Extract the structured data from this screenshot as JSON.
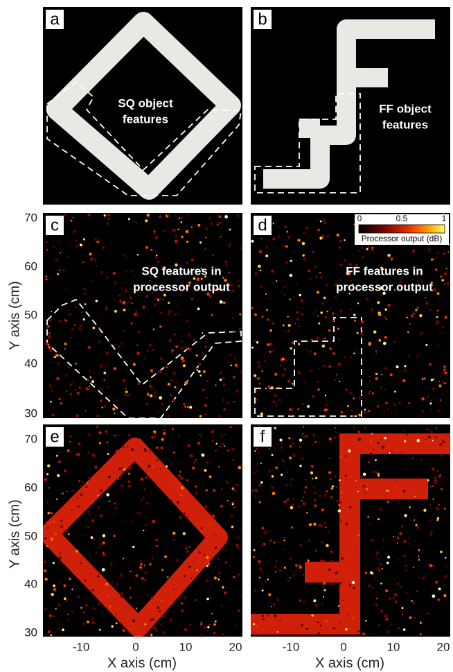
{
  "panels": [
    {
      "letter": "a",
      "annotation": [
        "SQ object",
        "features"
      ]
    },
    {
      "letter": "b",
      "annotation": [
        "FF object",
        "features"
      ]
    },
    {
      "letter": "c",
      "annotation": [
        "SQ features in",
        "processor output"
      ]
    },
    {
      "letter": "d",
      "annotation": [
        "FF features in",
        "processor output"
      ]
    },
    {
      "letter": "e"
    },
    {
      "letter": "f"
    }
  ],
  "axes": {
    "y_label": "Y axis (cm)",
    "x_label": "X axis (cm)",
    "y_ticks": [
      "70",
      "60",
      "50",
      "40",
      "30"
    ],
    "x_ticks": [
      "-10",
      "0",
      "10",
      "20"
    ]
  },
  "colorbar": {
    "ticks": [
      "0",
      "0.5",
      "1"
    ],
    "label": "Processor output (dB)"
  }
}
